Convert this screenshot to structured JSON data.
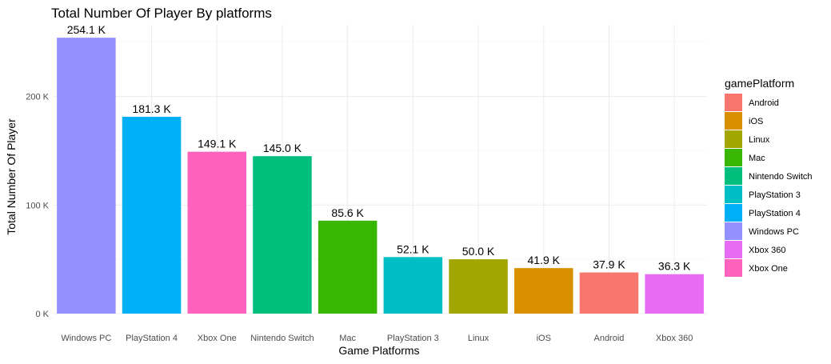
{
  "chart_data": {
    "type": "bar",
    "title": "Total Number Of Player By platforms",
    "xlabel": "Game Platforms",
    "ylabel": "Total Number Of Player",
    "ylim": [
      0,
      266000
    ],
    "y_ticks": [
      {
        "value": 0,
        "label": "0 K"
      },
      {
        "value": 100000,
        "label": "100 K"
      },
      {
        "value": 200000,
        "label": "200 K"
      }
    ],
    "grid": true,
    "legend_position": "right",
    "legend_title": "gamePlatform",
    "categories": [
      "Windows PC",
      "PlayStation 4",
      "Xbox One",
      "Nintendo Switch",
      "Mac",
      "PlayStation 3",
      "Linux",
      "iOS",
      "Android",
      "Xbox 360"
    ],
    "values": [
      254100,
      181300,
      149100,
      145000,
      85600,
      52100,
      50000,
      41900,
      37900,
      36300
    ],
    "data_labels": [
      "254.1 K",
      "181.3 K",
      "149.1 K",
      "145.0 K",
      "85.6 K",
      "52.1 K",
      "50.0 K",
      "41.9 K",
      "37.9 K",
      "36.3 K"
    ],
    "colors": {
      "Android": "#F8766D",
      "iOS": "#D89000",
      "Linux": "#A3A500",
      "Mac": "#39B600",
      "Nintendo Switch": "#00BF7D",
      "PlayStation 3": "#00BFC4",
      "PlayStation 4": "#00B0F6",
      "Windows PC": "#9590FF",
      "Xbox 360": "#E76BF3",
      "Xbox One": "#FF62BC"
    },
    "legend_entries": [
      "Android",
      "iOS",
      "Linux",
      "Mac",
      "Nintendo Switch",
      "PlayStation 3",
      "PlayStation 4",
      "Windows PC",
      "Xbox 360",
      "Xbox One"
    ]
  }
}
